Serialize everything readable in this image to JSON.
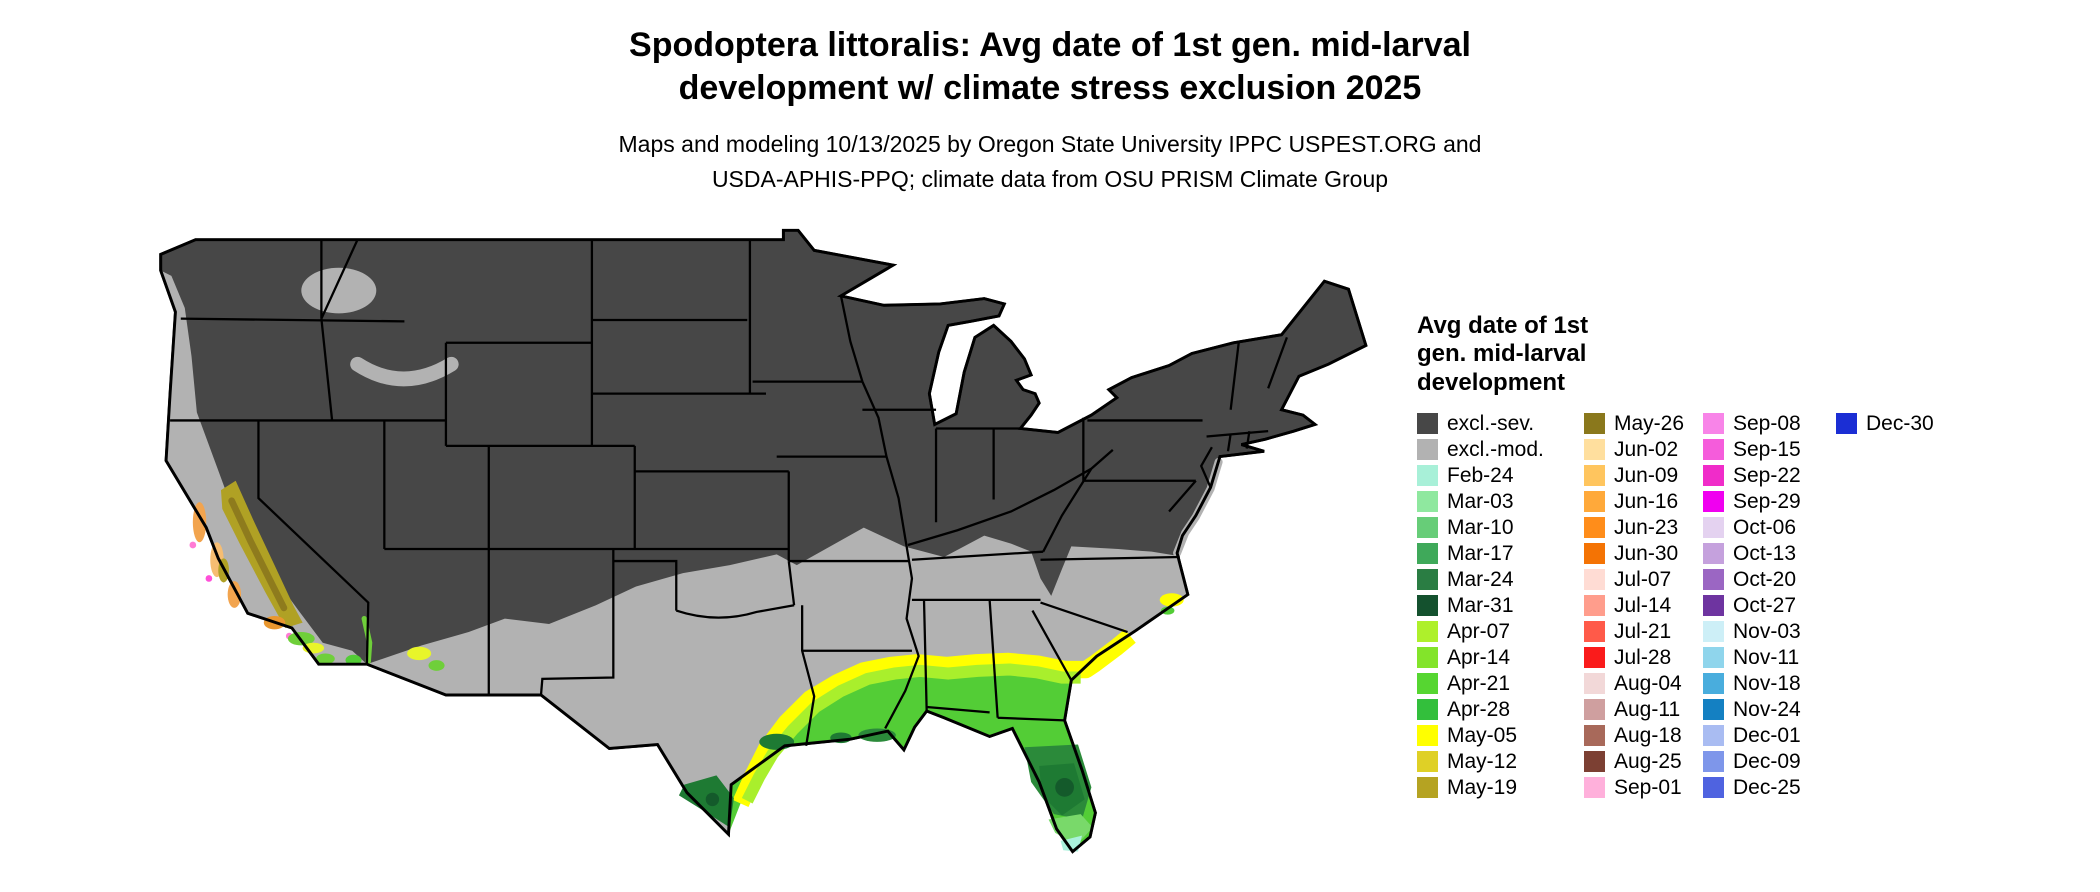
{
  "header": {
    "title": "Spodoptera littoralis: Avg date of 1st gen. mid-larval\ndevelopment w/ climate stress exclusion 2025",
    "subtitle": "Maps and modeling 10/13/2025 by Oregon State University IPPC USPEST.ORG and\nUSDA-APHIS-PPQ; climate data from OSU PRISM Climate Group"
  },
  "legend": {
    "title": "Avg date of 1st\ngen. mid-larval\ndevelopment",
    "columns": [
      [
        {
          "label": "excl.-sev.",
          "color": "#474747"
        },
        {
          "label": "excl.-mod.",
          "color": "#b2b2b2"
        },
        {
          "label": "Feb-24",
          "color": "#a8f0d8"
        },
        {
          "label": "Mar-03",
          "color": "#8fe89f"
        },
        {
          "label": "Mar-10",
          "color": "#67cd78"
        },
        {
          "label": "Mar-17",
          "color": "#3fa95a"
        },
        {
          "label": "Mar-24",
          "color": "#2a7d43"
        },
        {
          "label": "Mar-31",
          "color": "#14512e"
        },
        {
          "label": "Apr-07",
          "color": "#aef02b"
        },
        {
          "label": "Apr-14",
          "color": "#83e42a"
        },
        {
          "label": "Apr-21",
          "color": "#56d631"
        },
        {
          "label": "Apr-28",
          "color": "#33bf3c"
        },
        {
          "label": "May-05",
          "color": "#ffff00"
        },
        {
          "label": "May-12",
          "color": "#dfd026"
        },
        {
          "label": "May-19",
          "color": "#b5a322"
        }
      ],
      [
        {
          "label": "May-26",
          "color": "#8a781c"
        },
        {
          "label": "Jun-02",
          "color": "#ffdf9e"
        },
        {
          "label": "Jun-09",
          "color": "#ffc55e"
        },
        {
          "label": "Jun-16",
          "color": "#ffa93a"
        },
        {
          "label": "Jun-23",
          "color": "#ff8d1a"
        },
        {
          "label": "Jun-30",
          "color": "#f47304"
        },
        {
          "label": "Jul-07",
          "color": "#ffdcd4"
        },
        {
          "label": "Jul-14",
          "color": "#ff9d8c"
        },
        {
          "label": "Jul-21",
          "color": "#ff5a49"
        },
        {
          "label": "Jul-28",
          "color": "#fa1b1b"
        },
        {
          "label": "Aug-04",
          "color": "#f2d8d8"
        },
        {
          "label": "Aug-11",
          "color": "#cf9f9f"
        },
        {
          "label": "Aug-18",
          "color": "#a8695a"
        },
        {
          "label": "Aug-25",
          "color": "#7c4033"
        },
        {
          "label": "Sep-01",
          "color": "#ffb0db"
        }
      ],
      [
        {
          "label": "Sep-08",
          "color": "#f884e8"
        },
        {
          "label": "Sep-15",
          "color": "#f55cdb"
        },
        {
          "label": "Sep-22",
          "color": "#f02cc9"
        },
        {
          "label": "Sep-29",
          "color": "#f000f0"
        },
        {
          "label": "Oct-06",
          "color": "#e4d2f0"
        },
        {
          "label": "Oct-13",
          "color": "#c5a1dd"
        },
        {
          "label": "Oct-20",
          "color": "#9b66c3"
        },
        {
          "label": "Oct-27",
          "color": "#6e34a0"
        },
        {
          "label": "Nov-03",
          "color": "#cdeff7"
        },
        {
          "label": "Nov-11",
          "color": "#8fd5ec"
        },
        {
          "label": "Nov-18",
          "color": "#49addd"
        },
        {
          "label": "Nov-24",
          "color": "#1480c2"
        },
        {
          "label": "Dec-01",
          "color": "#a9bcf2"
        },
        {
          "label": "Dec-09",
          "color": "#7e96ea"
        },
        {
          "label": "Dec-25",
          "color": "#4f63e0"
        }
      ],
      [
        {
          "label": "Dec-30",
          "color": "#1b2ed4"
        }
      ]
    ]
  },
  "map_colors": {
    "excluded_severe": "#474747",
    "excluded_moderate": "#b2b2b2",
    "state_line": "#000000",
    "green_base": "#53cd36",
    "yellow_band": "#ffff00",
    "yellowgreen_band": "#a9ef2c",
    "dark_green": "#1e7a33",
    "darker_green": "#145a2b",
    "mid_green": "#2b8a3a",
    "light_green": "#79d96a",
    "pale_cyan": "#aaf1dc",
    "olive": "#b0a124",
    "dark_olive": "#8e7b1d",
    "orange": "#f2a44e",
    "orange_light": "#f6bd72",
    "orange_deep": "#e9972f",
    "pink": "#ff7bd5",
    "magenta": "#ff4fd8",
    "socal_green": "#6fcf3a",
    "socal_yellow": "#e8f52a"
  }
}
